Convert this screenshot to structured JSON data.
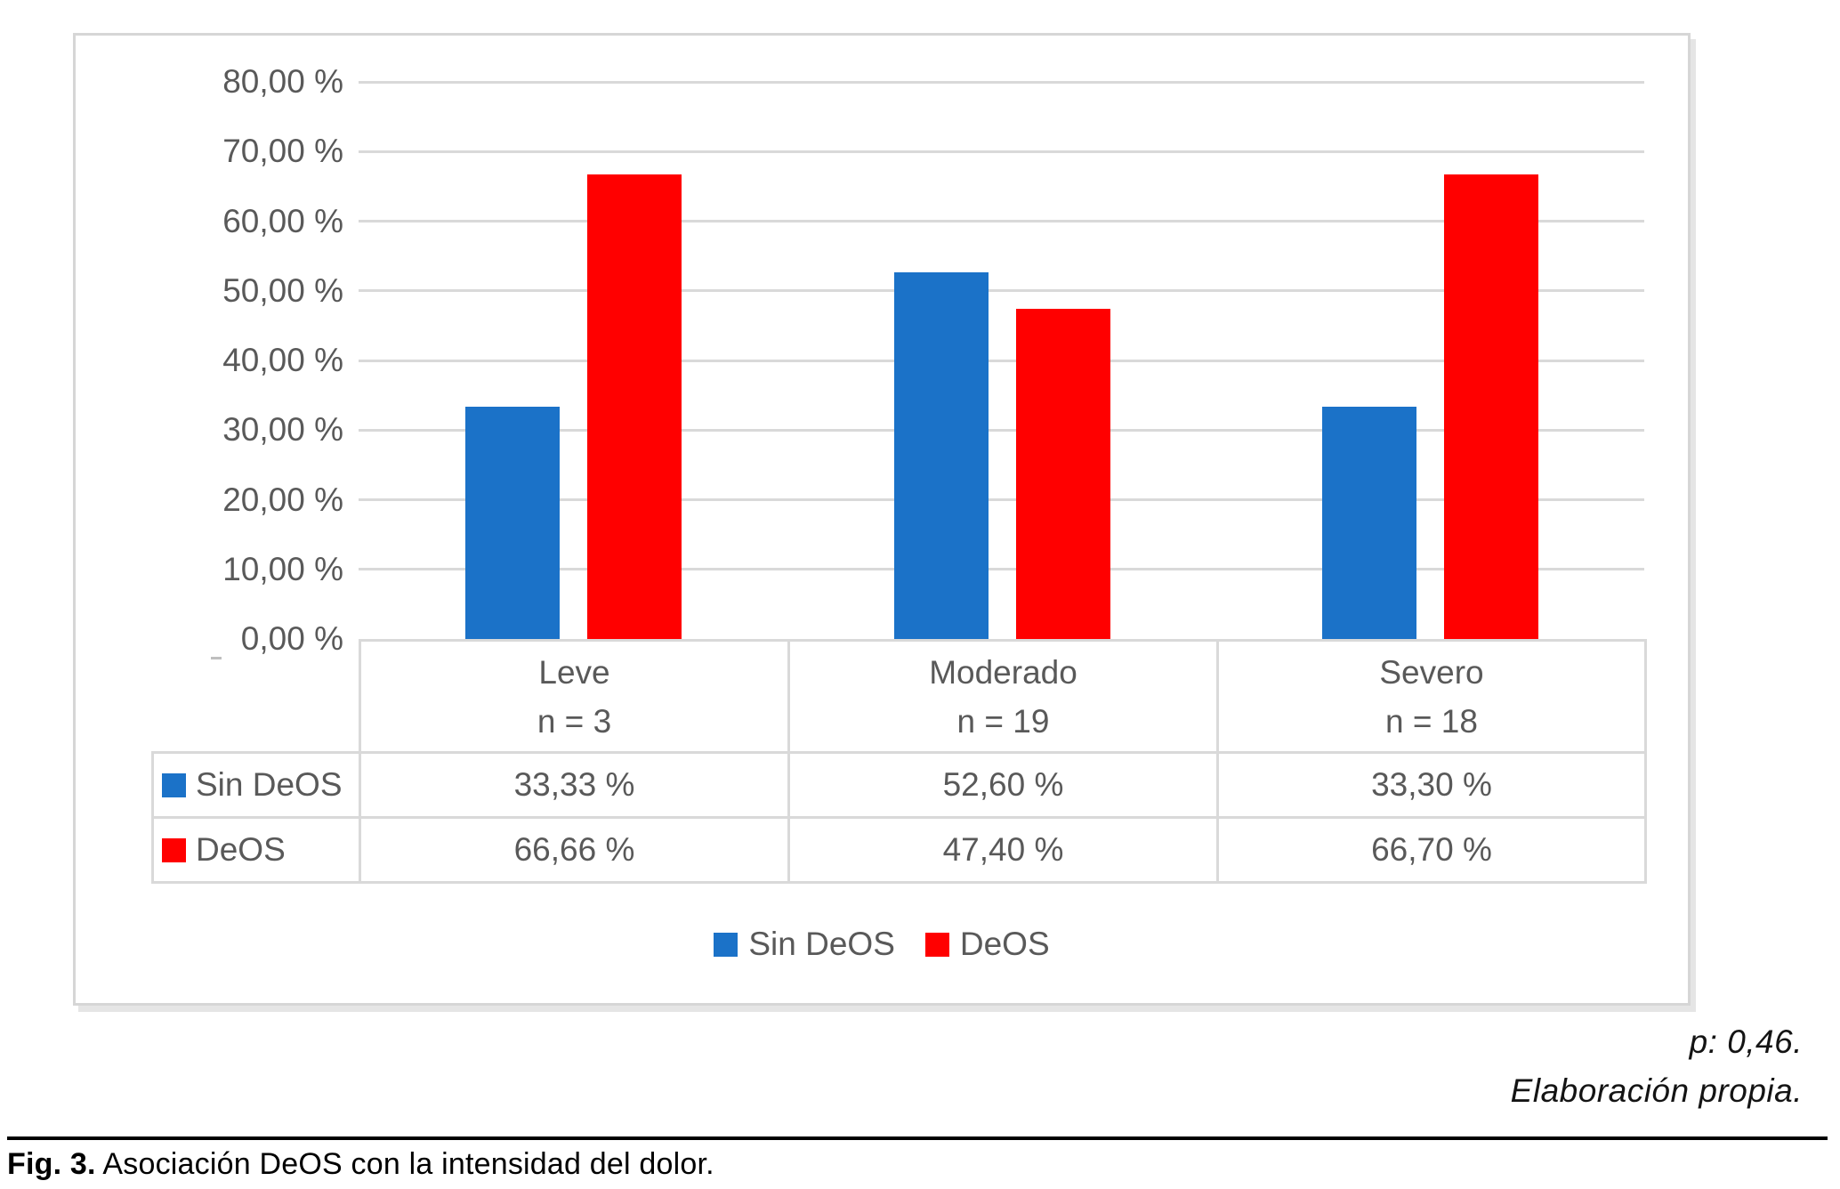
{
  "figure": {
    "caption_label": "Fig. 3.",
    "caption_text": " Asociación DeOS con la intensidad del dolor.",
    "footnote_p_value": "p: 0,46.",
    "footnote_source": "Elaboración propia."
  },
  "colors": {
    "sin_deos_blue": "#1B72C8",
    "deos_red": "#FF0000",
    "gridline_gray": "#D9D9D9",
    "chart_text_gray": "#595959"
  },
  "chart_data": {
    "type": "bar",
    "title": "",
    "categories": [
      "Leve",
      "Moderado",
      "Severo"
    ],
    "category_counts": [
      "n = 3",
      "n = 19",
      "n = 18"
    ],
    "series": [
      {
        "name": "Sin DeOS",
        "color": "#1B72C8",
        "values": [
          33.33,
          52.6,
          33.3
        ],
        "value_labels": [
          "33,33 %",
          "52,60 %",
          "33,30 %"
        ]
      },
      {
        "name": "DeOS",
        "color": "#FF0000",
        "values": [
          66.66,
          47.4,
          66.7
        ],
        "value_labels": [
          "66,66 %",
          "47,40 %",
          "66,70 %"
        ]
      }
    ],
    "ylim": [
      0,
      80
    ],
    "ytick_step": 10,
    "ytick_labels": [
      "80,00 %",
      "70,00 %",
      "60,00 %",
      "50,00 %",
      "40,00 %",
      "30,00 %",
      "20,00 %",
      "10,00 %",
      "0,00 %"
    ],
    "grid": true,
    "show_data_table": true,
    "legend_labels": [
      "Sin DeOS",
      "DeOS"
    ],
    "legend_position": "bottom"
  }
}
